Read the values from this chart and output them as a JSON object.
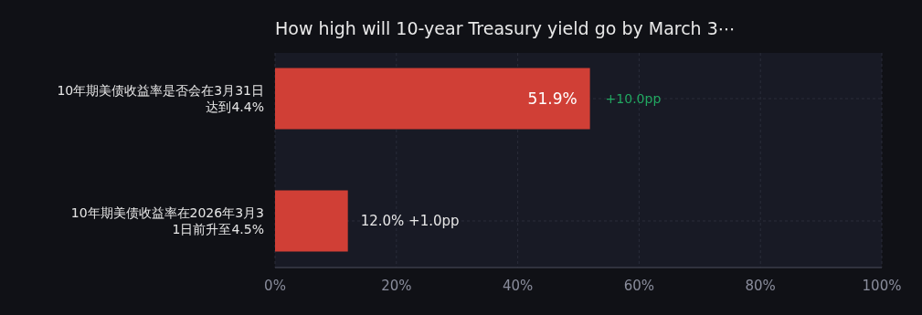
{
  "chart_data": {
    "type": "bar",
    "orientation": "horizontal",
    "title": "How high will 10-year Treasury yield go by March 3⋯",
    "categories": [
      "10年期美债收益率是否会在3月31日达到4.4%",
      "10年期美债收益率在2026年3月31日前升至4.5%"
    ],
    "values": [
      51.9,
      12.0
    ],
    "color": "#d03f36",
    "value_labels": [
      "51.9%",
      "12.0% +1.0pp"
    ],
    "annotations": [
      {
        "text": "+10.0pp",
        "x": 51.9,
        "y": "10年期美债收益率是否会在3月31日达到4.4%"
      }
    ],
    "xlim": [
      0,
      100
    ],
    "xticks": [
      {
        "value": 0,
        "label": "0%"
      },
      {
        "value": 20,
        "label": "20%"
      },
      {
        "value": 40,
        "label": "40%"
      },
      {
        "value": 60,
        "label": "60%"
      },
      {
        "value": 80,
        "label": "80%"
      },
      {
        "value": 100,
        "label": "100%"
      }
    ],
    "grid": true
  }
}
